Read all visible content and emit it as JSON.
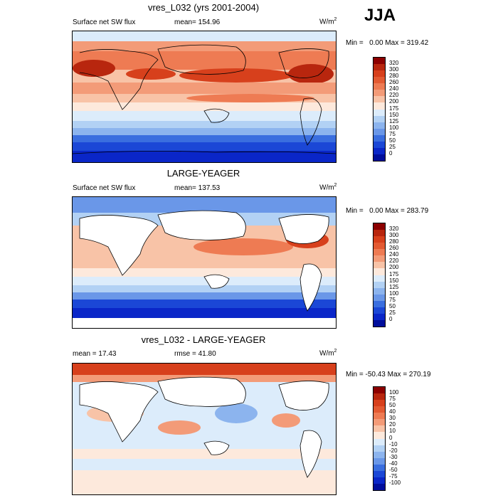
{
  "season": "JJA",
  "panels": [
    {
      "id": "model",
      "title": "vres_L032 (yrs 2001-2004)",
      "left_label": "Surface net SW flux",
      "center_label": "mean= 154.96",
      "units": "W/m",
      "units_exp": "2",
      "minmax": "Min =   0.00 Max = 319.42",
      "colorbar": {
        "labels": [
          "320",
          "300",
          "280",
          "260",
          "240",
          "220",
          "200",
          "175",
          "150",
          "125",
          "100",
          "75",
          "50",
          "25",
          "0"
        ],
        "colors": [
          "#8c0000",
          "#b8260e",
          "#d7401c",
          "#e35a32",
          "#ee7b53",
          "#f39b78",
          "#f8c3a7",
          "#fde9dc",
          "#dcecfb",
          "#b2d1f4",
          "#8cb4ee",
          "#6a97e8",
          "#3a6edf",
          "#1b47d6",
          "#0a26c8",
          "#000e9b"
        ]
      }
    },
    {
      "id": "obs",
      "title": "LARGE-YEAGER",
      "left_label": "Surface net SW flux",
      "center_label": "mean= 137.53",
      "units": "W/m",
      "units_exp": "2",
      "minmax": "Min =   0.00 Max = 283.79",
      "colorbar": {
        "labels": [
          "320",
          "300",
          "280",
          "260",
          "240",
          "220",
          "200",
          "175",
          "150",
          "125",
          "100",
          "75",
          "50",
          "25",
          "0"
        ],
        "colors": [
          "#8c0000",
          "#b8260e",
          "#d7401c",
          "#e35a32",
          "#ee7b53",
          "#f39b78",
          "#f8c3a7",
          "#fde9dc",
          "#dcecfb",
          "#b2d1f4",
          "#8cb4ee",
          "#6a97e8",
          "#3a6edf",
          "#1b47d6",
          "#0a26c8",
          "#000e9b"
        ]
      }
    },
    {
      "id": "diff",
      "title": "vres_L032 - LARGE-YEAGER",
      "left_label": "mean =  17.43",
      "center_label": "rmse =  41.80",
      "units": "W/m",
      "units_exp": "2",
      "minmax": "Min = -50.43 Max = 270.19",
      "colorbar": {
        "labels": [
          "100",
          "75",
          "50",
          "40",
          "30",
          "20",
          "10",
          "0",
          "-10",
          "-20",
          "-30",
          "-40",
          "-50",
          "-75",
          "-100"
        ],
        "colors": [
          "#8c0000",
          "#b8260e",
          "#d7401c",
          "#e35a32",
          "#ee7b53",
          "#f39b78",
          "#f8c3a7",
          "#fde9dc",
          "#dcecfb",
          "#b2d1f4",
          "#8cb4ee",
          "#6a97e8",
          "#3a6edf",
          "#1b47d6",
          "#0a26c8",
          "#000e9b"
        ]
      }
    }
  ]
}
